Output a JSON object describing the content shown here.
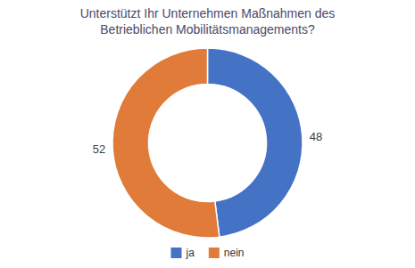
{
  "chart_data": {
    "type": "donut",
    "title": "Unterstützt Ihr Unternehmen Maßnahmen des\nBetrieblichen Mobilitätsmanagements?",
    "categories": [
      "ja",
      "nein"
    ],
    "values": [
      48,
      52
    ],
    "colors": [
      "#4472c4",
      "#e07b39"
    ],
    "data_labels": true,
    "legend": "bottom"
  }
}
